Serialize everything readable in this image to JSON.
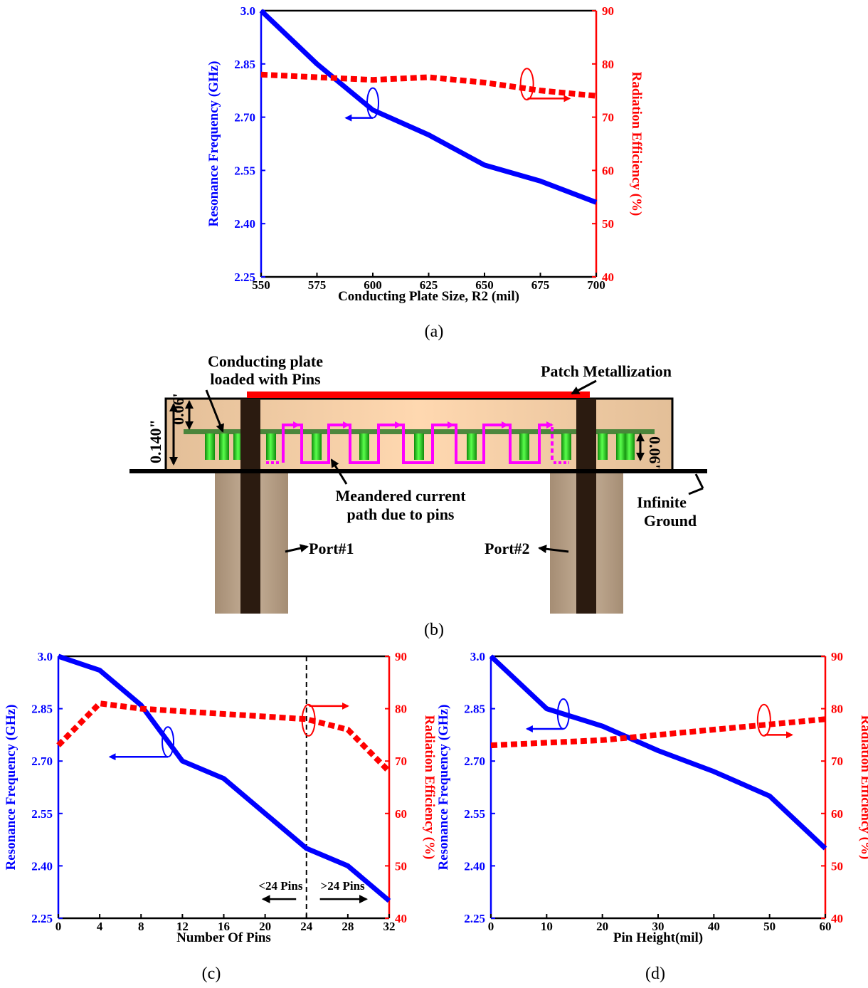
{
  "figure": {
    "sub_a": "(a)",
    "sub_b": "(b)",
    "sub_c": "(c)",
    "sub_d": "(d)"
  },
  "colors": {
    "freq": "#0000ff",
    "eff": "#ff0000",
    "pin": "#22c21e",
    "meander": "#ff00ff",
    "substrate": "#f5cfa8",
    "port": "#b29c84",
    "feed": "#2b1b10"
  },
  "chart_data": [
    {
      "id": "a",
      "type": "line",
      "xlabel": "Conducting Plate Size, R2 (mil)",
      "ylabel": "Resonance Frequency (GHz)",
      "y2label": "Radiation Efficiency (%)",
      "xlim": [
        550,
        700
      ],
      "ylim": [
        2.25,
        3.0
      ],
      "y2lim": [
        40,
        90
      ],
      "xticks": [
        "550",
        "575",
        "600",
        "625",
        "650",
        "675",
        "700"
      ],
      "yticks": [
        "2.25",
        "2.40",
        "2.55",
        "2.70",
        "2.85",
        "3.0"
      ],
      "y2ticks": [
        "40",
        "50",
        "60",
        "70",
        "80",
        "90"
      ],
      "series": [
        {
          "axis": "left",
          "style": "solid",
          "color": "#0000ff",
          "x": [
            550,
            575,
            600,
            625,
            650,
            675,
            700
          ],
          "values": [
            3.0,
            2.85,
            2.72,
            2.65,
            2.565,
            2.52,
            2.46
          ]
        },
        {
          "axis": "right",
          "style": "dotted",
          "color": "#ff0000",
          "x": [
            550,
            575,
            600,
            625,
            650,
            675,
            700
          ],
          "values": [
            78,
            77.5,
            77,
            77.5,
            76.5,
            75,
            74
          ]
        }
      ],
      "vline": null,
      "annotations": []
    },
    {
      "id": "c",
      "type": "line",
      "xlabel": "Number Of Pins",
      "ylabel": "Resonance Frequency (GHz)",
      "y2label": "Radiation Efficiency (%)",
      "xlim": [
        0,
        32
      ],
      "ylim": [
        2.25,
        3.0
      ],
      "y2lim": [
        40,
        90
      ],
      "xticks": [
        "0",
        "4",
        "8",
        "12",
        "16",
        "20",
        "24",
        "28",
        "32"
      ],
      "yticks": [
        "2.25",
        "2.40",
        "2.55",
        "2.70",
        "2.85",
        "3.0"
      ],
      "y2ticks": [
        "40",
        "50",
        "60",
        "70",
        "80",
        "90"
      ],
      "series": [
        {
          "axis": "left",
          "style": "solid",
          "color": "#0000ff",
          "x": [
            0,
            4,
            8,
            12,
            16,
            20,
            24,
            28,
            32
          ],
          "values": [
            3.0,
            2.96,
            2.86,
            2.7,
            2.65,
            2.55,
            2.45,
            2.4,
            2.3
          ]
        },
        {
          "axis": "right",
          "style": "dotted",
          "color": "#ff0000",
          "x": [
            0,
            4,
            8,
            12,
            16,
            20,
            24,
            28,
            32
          ],
          "values": [
            73,
            81,
            80,
            79.5,
            79,
            78.5,
            78,
            76,
            68
          ]
        }
      ],
      "vline": 24,
      "annotations": [
        "<24 Pins",
        ">24 Pins"
      ]
    },
    {
      "id": "d",
      "type": "line",
      "xlabel": "Pin Height(mil)",
      "ylabel": "Resonance Frequency (GHz)",
      "y2label": "Radiation Efficiency (%)",
      "xlim": [
        0,
        60
      ],
      "ylim": [
        2.25,
        3.0
      ],
      "y2lim": [
        40,
        90
      ],
      "xticks": [
        "0",
        "10",
        "20",
        "30",
        "40",
        "50",
        "60"
      ],
      "yticks": [
        "2.25",
        "2.40",
        "2.55",
        "2.70",
        "2.85",
        "3.0"
      ],
      "y2ticks": [
        "40",
        "50",
        "60",
        "70",
        "80",
        "90"
      ],
      "series": [
        {
          "axis": "left",
          "style": "solid",
          "color": "#0000ff",
          "x": [
            0,
            10,
            20,
            30,
            40,
            50,
            60
          ],
          "values": [
            3.0,
            2.85,
            2.8,
            2.73,
            2.67,
            2.6,
            2.45
          ]
        },
        {
          "axis": "right",
          "style": "dotted",
          "color": "#ff0000",
          "x": [
            0,
            10,
            20,
            30,
            40,
            50,
            60
          ],
          "values": [
            73,
            73.5,
            74,
            75,
            76,
            77,
            78
          ]
        }
      ],
      "vline": null,
      "annotations": []
    }
  ],
  "diagram": {
    "label_plate_line1": "Conducting plate",
    "label_plate_line2": "loaded with Pins",
    "label_patch": "Patch Metallization",
    "label_height_total": "0.140\"",
    "label_height_top": "0.06'",
    "label_height_pin": "0.06\"",
    "label_meander_line1": "Meandered current",
    "label_meander_line2": "path due to pins",
    "label_ground_line1": "Infinite",
    "label_ground_line2": "Ground",
    "label_port1": "Port#1",
    "label_port2": "Port#2"
  }
}
